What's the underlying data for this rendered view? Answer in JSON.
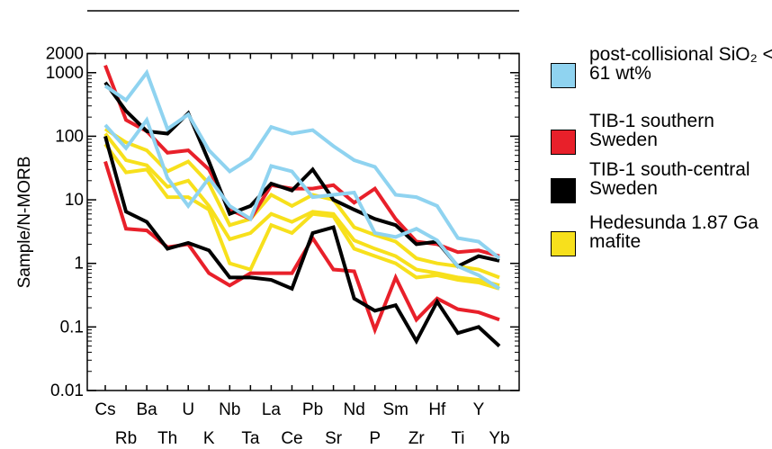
{
  "chart_data": {
    "type": "line",
    "y_label": "Sample/N-MORB",
    "log_y": true,
    "categories": [
      "Cs",
      "Rb",
      "Ba",
      "Th",
      "U",
      "K",
      "Nb",
      "Ta",
      "La",
      "Ce",
      "Pb",
      "Sr",
      "Nd",
      "P",
      "Sm",
      "Zr",
      "Hf",
      "Ti",
      "Y",
      "Yb"
    ],
    "ylim": [
      0.01,
      2000
    ],
    "yticks": [
      0.01,
      0.1,
      1,
      10,
      100,
      1000,
      2000
    ],
    "series": [
      {
        "name": "Hedesunda 1.87 Ga mafite",
        "color": "#f7e01c",
        "lines": [
          [
            130,
            80,
            60,
            28,
            40,
            18,
            4,
            5,
            12,
            8,
            12,
            10,
            3.7,
            2.8,
            2.2,
            1.2,
            1,
            0.9,
            0.8,
            0.6
          ],
          [
            110,
            42,
            35,
            16,
            20,
            8,
            2.4,
            3,
            6,
            4.5,
            6.5,
            6,
            2.3,
            1.7,
            1.3,
            0.8,
            0.7,
            0.6,
            0.55,
            0.45
          ],
          [
            75,
            27,
            30,
            11,
            11,
            7,
            1,
            0.8,
            4,
            3,
            6,
            5.5,
            1.7,
            1.3,
            1,
            0.6,
            0.65,
            0.55,
            0.5,
            0.4
          ]
        ]
      },
      {
        "name": "TIB-1 southern Sweden",
        "color": "#e8202a",
        "lines": [
          [
            1300,
            180,
            120,
            55,
            60,
            30,
            7,
            5,
            17,
            15,
            15,
            17,
            9,
            15,
            5,
            2.2,
            2,
            1.5,
            1.6,
            1.3
          ],
          [
            40,
            3.5,
            3.3,
            1.8,
            2,
            0.7,
            0.45,
            0.7,
            0.7,
            0.7,
            2.5,
            0.8,
            0.75,
            0.09,
            0.6,
            0.13,
            0.28,
            0.19,
            0.17,
            0.13
          ]
        ]
      },
      {
        "name": "TIB-1 south-central Sweden",
        "color": "#000000",
        "lines": [
          [
            700,
            250,
            120,
            110,
            230,
            40,
            6,
            8,
            18,
            14,
            30,
            10,
            7,
            5,
            4,
            2,
            2.2,
            0.9,
            1.3,
            1.1
          ],
          [
            100,
            6.5,
            4.5,
            1.7,
            2.1,
            1.6,
            0.6,
            0.6,
            0.55,
            0.4,
            3,
            3.7,
            0.28,
            0.18,
            0.22,
            0.06,
            0.25,
            0.08,
            0.1,
            0.05
          ]
        ]
      },
      {
        "name": "post-collisional SiO₂ < 61 wt%",
        "color": "#8fd3f0",
        "lines": [
          [
            620,
            370,
            1000,
            130,
            220,
            60,
            28,
            45,
            140,
            110,
            125,
            70,
            42,
            33,
            12,
            11,
            8,
            2.5,
            2.2,
            1.2
          ],
          [
            150,
            65,
            180,
            22,
            8,
            22,
            8,
            5,
            34,
            28,
            11,
            12,
            13,
            3,
            2.6,
            3.5,
            2.3,
            0.9,
            0.65,
            0.4
          ]
        ]
      }
    ]
  }
}
